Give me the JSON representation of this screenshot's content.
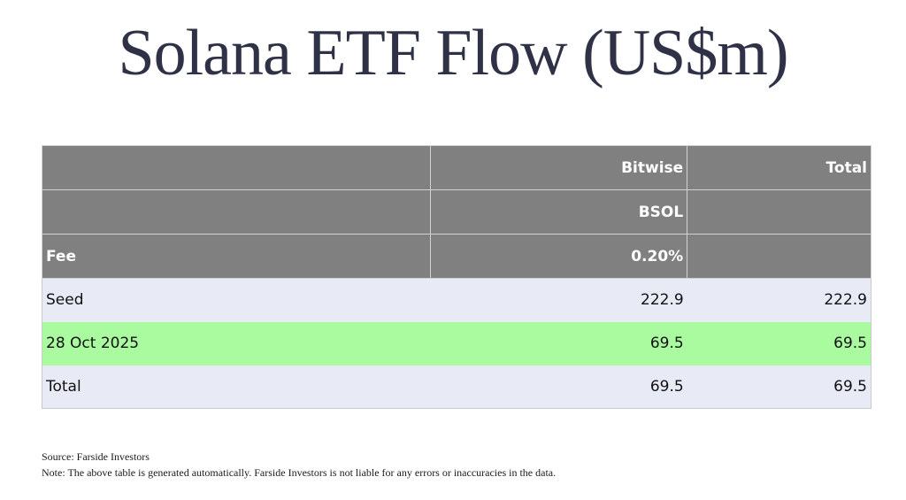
{
  "title": "Solana ETF Flow (US$m)",
  "table": {
    "header_rows": [
      [
        "",
        "Bitwise",
        "Total"
      ],
      [
        "",
        "BSOL",
        ""
      ],
      [
        "Fee",
        "0.20%",
        ""
      ]
    ],
    "rows": [
      {
        "label": "Seed",
        "bsol": "222.9",
        "total": "222.9"
      },
      {
        "label": "28 Oct 2025",
        "bsol": "69.5",
        "total": "69.5"
      },
      {
        "label": "Total",
        "bsol": "69.5",
        "total": "69.5"
      }
    ],
    "colors": {
      "header_bg": "#808080",
      "row_bg": "#e8eaf6",
      "highlight_bg": "#aafaa0"
    }
  },
  "footer": {
    "source": "Source: Farside Investors",
    "note": "Note: The above table is generated automatically. Farside Investors is not liable for any errors or inaccuracies in the data."
  }
}
